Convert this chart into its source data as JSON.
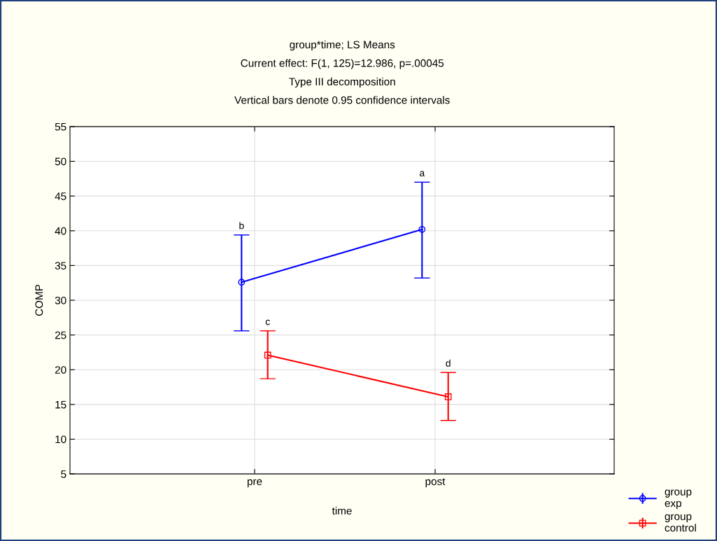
{
  "chart_data": {
    "type": "line",
    "title": "group*time; LS Means\nCurrent effect: F(1, 125)=12.986, p=.00045\nType III decomposition\nVertical bars denote 0.95 confidence intervals",
    "xlabel": "time",
    "ylabel": "COMP",
    "categories": [
      "pre",
      "post"
    ],
    "series": [
      {
        "name": "group\nexp",
        "color": "#0000ff",
        "marker": "circle",
        "values": [
          32.6,
          40.2
        ],
        "errors": [
          [
            25.6,
            39.4
          ],
          [
            33.2,
            47.0
          ]
        ]
      },
      {
        "name": "group\ncontrol",
        "color": "#ff0000",
        "marker": "square",
        "values": [
          22.1,
          16.1
        ],
        "errors": [
          [
            18.7,
            25.6
          ],
          [
            12.7,
            19.6
          ]
        ]
      }
    ],
    "ylim": [
      5,
      55
    ],
    "yticks": [
      5,
      10,
      15,
      20,
      25,
      30,
      35,
      40,
      45,
      50,
      55
    ],
    "grid": true,
    "legend": "bottom right",
    "annotations": [
      "b",
      "a",
      "c",
      "d"
    ]
  }
}
